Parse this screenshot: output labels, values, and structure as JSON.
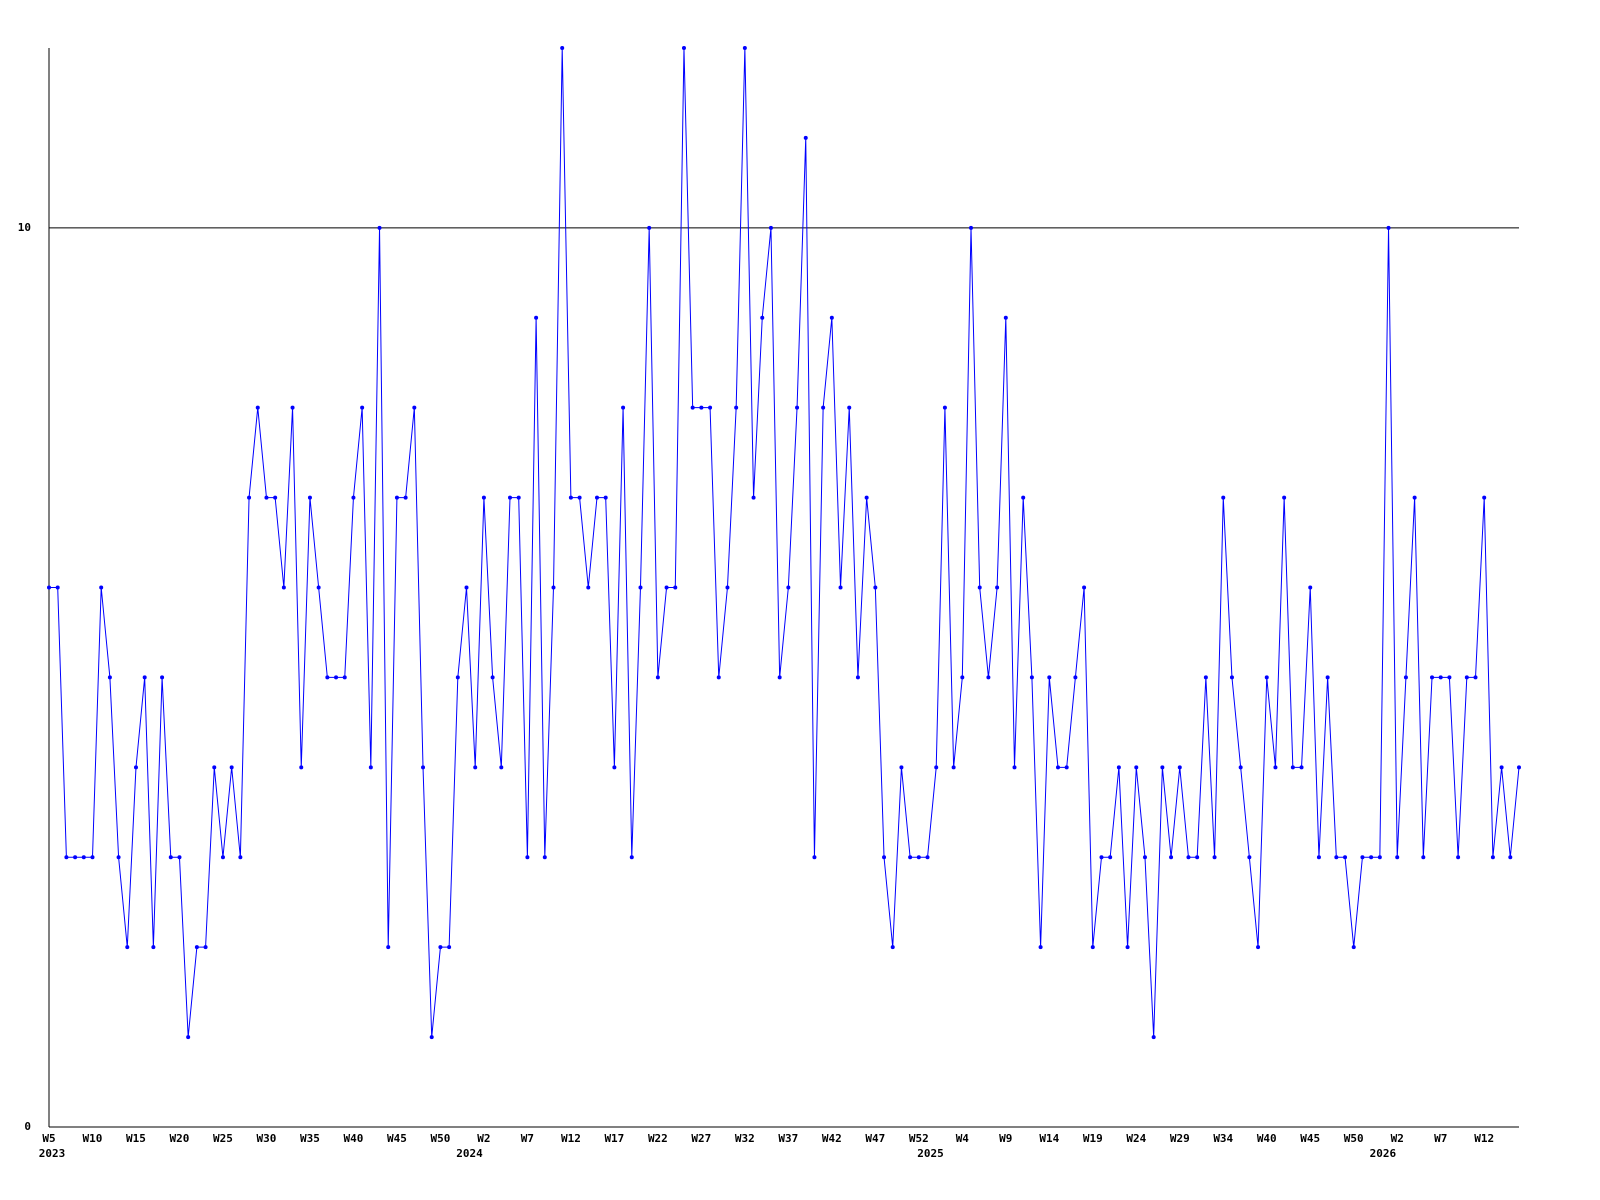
{
  "chart_data": {
    "type": "line",
    "color": "#0000ff",
    "grid": true,
    "ylim": [
      0,
      12
    ],
    "yticks": [
      0,
      10
    ],
    "categories": [
      "W5",
      null,
      null,
      null,
      null,
      "W10",
      null,
      null,
      null,
      null,
      "W15",
      null,
      null,
      null,
      null,
      "W20",
      null,
      null,
      null,
      null,
      "W25",
      null,
      null,
      null,
      null,
      "W30",
      null,
      null,
      null,
      null,
      "W35",
      null,
      null,
      null,
      null,
      "W40",
      null,
      null,
      null,
      null,
      "W45",
      null,
      null,
      null,
      null,
      "W50",
      null,
      null,
      null,
      null,
      "W2",
      null,
      null,
      null,
      null,
      "W7",
      null,
      null,
      null,
      null,
      "W12",
      null,
      null,
      null,
      null,
      "W17",
      null,
      null,
      null,
      null,
      "W22",
      null,
      null,
      null,
      null,
      "W27",
      null,
      null,
      null,
      null,
      "W32",
      null,
      null,
      null,
      null,
      "W37",
      null,
      null,
      null,
      null,
      "W42",
      null,
      null,
      null,
      null,
      "W47",
      null,
      null,
      null,
      null,
      "W52",
      null,
      null,
      null,
      null,
      "W4",
      null,
      null,
      null,
      null,
      "W9",
      null,
      null,
      null,
      null,
      "W14",
      null,
      null,
      null,
      null,
      "W19",
      null,
      null,
      null,
      null,
      "W24",
      null,
      null,
      null,
      null,
      "W29",
      null,
      null,
      null,
      null,
      "W34",
      null,
      null,
      null,
      null,
      "W40",
      null,
      null,
      null,
      null,
      "W45",
      null,
      null,
      null,
      null,
      "W50",
      null,
      null,
      null,
      null,
      "W2",
      null,
      null,
      null,
      null,
      "W7",
      null,
      null,
      null,
      null,
      "W12",
      null,
      null,
      null,
      null
    ],
    "x_sublabels": [
      "2023",
      null,
      null,
      null,
      null,
      null,
      null,
      null,
      null,
      null,
      null,
      null,
      null,
      null,
      null,
      null,
      null,
      null,
      null,
      null,
      null,
      null,
      null,
      null,
      null,
      null,
      null,
      null,
      null,
      null,
      null,
      null,
      null,
      null,
      null,
      null,
      null,
      null,
      null,
      null,
      null,
      null,
      null,
      null,
      null,
      null,
      null,
      null,
      "2024",
      null,
      null,
      null,
      null,
      null,
      null,
      null,
      null,
      null,
      null,
      null,
      null,
      null,
      null,
      null,
      null,
      null,
      null,
      null,
      null,
      null,
      null,
      null,
      null,
      null,
      null,
      null,
      null,
      null,
      null,
      null,
      null,
      null,
      null,
      null,
      null,
      null,
      null,
      null,
      null,
      null,
      null,
      null,
      null,
      null,
      null,
      null,
      null,
      null,
      null,
      null,
      null,
      "2025",
      null,
      null,
      null,
      null,
      null,
      null,
      null,
      null,
      null,
      null,
      null,
      null,
      null,
      null,
      null,
      null,
      null,
      null,
      null,
      null,
      null,
      null,
      null,
      null,
      null,
      null,
      null,
      null,
      null,
      null,
      null,
      null,
      null,
      null,
      null,
      null,
      null,
      null,
      null,
      null,
      null,
      null,
      null,
      null,
      null,
      null,
      null,
      null,
      null,
      null,
      null,
      "2026",
      null,
      null,
      null,
      null,
      null,
      null,
      null,
      null,
      null,
      null,
      null,
      null,
      null,
      null,
      null,
      null
    ],
    "values": [
      6,
      6,
      3,
      3,
      3,
      3,
      6,
      5,
      3,
      2,
      4,
      5,
      2,
      5,
      3,
      3,
      1,
      2,
      2,
      4,
      3,
      4,
      3,
      7,
      8,
      7,
      7,
      6,
      8,
      4,
      7,
      6,
      5,
      5,
      5,
      7,
      8,
      4,
      10,
      2,
      7,
      7,
      8,
      4,
      1,
      2,
      2,
      5,
      6,
      4,
      7,
      5,
      4,
      7,
      7,
      3,
      9,
      3,
      6,
      12,
      7,
      7,
      6,
      7,
      7,
      4,
      8,
      3,
      6,
      10,
      5,
      6,
      6,
      12,
      8,
      8,
      8,
      5,
      6,
      8,
      12,
      7,
      9,
      10,
      5,
      6,
      8,
      11,
      3,
      8,
      9,
      6,
      8,
      5,
      7,
      6,
      3,
      2,
      4,
      3,
      3,
      3,
      4,
      8,
      4,
      5,
      10,
      6,
      5,
      6,
      9,
      4,
      7,
      5,
      2,
      5,
      4,
      4,
      5,
      6,
      2,
      3,
      3,
      4,
      2,
      4,
      3,
      1,
      4,
      3,
      4,
      3,
      3,
      5,
      3,
      7,
      5,
      4,
      3,
      2,
      5,
      4,
      7,
      4,
      4,
      6,
      3,
      5,
      3,
      3,
      2,
      3,
      3,
      3,
      10,
      3,
      5,
      7,
      3,
      5,
      5,
      5,
      3,
      5,
      5,
      7,
      3,
      4,
      3,
      4
    ]
  }
}
